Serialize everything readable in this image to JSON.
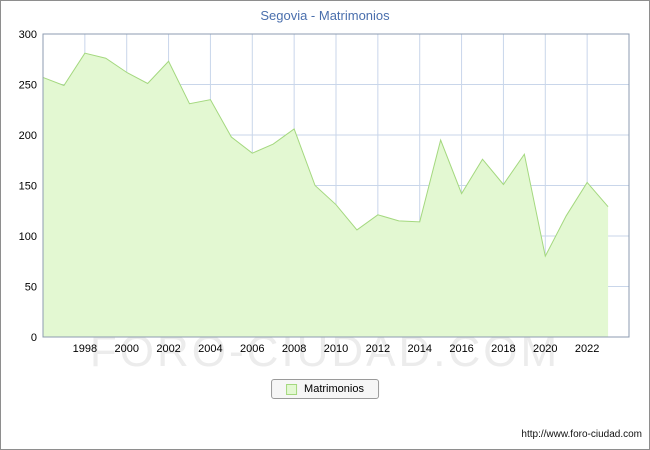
{
  "title": "Segovia - Matrimonios",
  "watermark": "FORO-CIUDAD.COM",
  "legend": {
    "label": "Matrimonios"
  },
  "footer": {
    "url": "http://www.foro-ciudad.com"
  },
  "chart_data": {
    "type": "area",
    "title": "Segovia - Matrimonios",
    "x": [
      1996,
      1997,
      1998,
      1999,
      2000,
      2001,
      2002,
      2003,
      2004,
      2005,
      2006,
      2007,
      2008,
      2009,
      2010,
      2011,
      2012,
      2013,
      2014,
      2015,
      2016,
      2017,
      2018,
      2019,
      2020,
      2021,
      2022,
      2023
    ],
    "series": [
      {
        "name": "Matrimonios",
        "values": [
          257,
          249,
          281,
          276,
          262,
          251,
          273,
          231,
          235,
          198,
          182,
          191,
          206,
          150,
          131,
          106,
          121,
          115,
          114,
          195,
          142,
          176,
          151,
          181,
          80,
          120,
          153,
          129
        ]
      }
    ],
    "xlim": [
      1996,
      2024
    ],
    "ylim": [
      0,
      300
    ],
    "ytick_step": 50,
    "yticks": [
      0,
      50,
      100,
      150,
      200,
      250,
      300
    ],
    "xticks": [
      1998,
      2000,
      2002,
      2004,
      2006,
      2008,
      2010,
      2012,
      2014,
      2016,
      2018,
      2020,
      2022
    ],
    "grid": true,
    "legend_position": "bottom",
    "colors": {
      "area_fill": "#e3f8d2",
      "area_line": "#a4d87f",
      "grid": "#c9d6ea",
      "axis": "#8c9bb0",
      "tick_text": "#000000",
      "title": "#4a6fad",
      "watermark": "#ececec"
    }
  }
}
